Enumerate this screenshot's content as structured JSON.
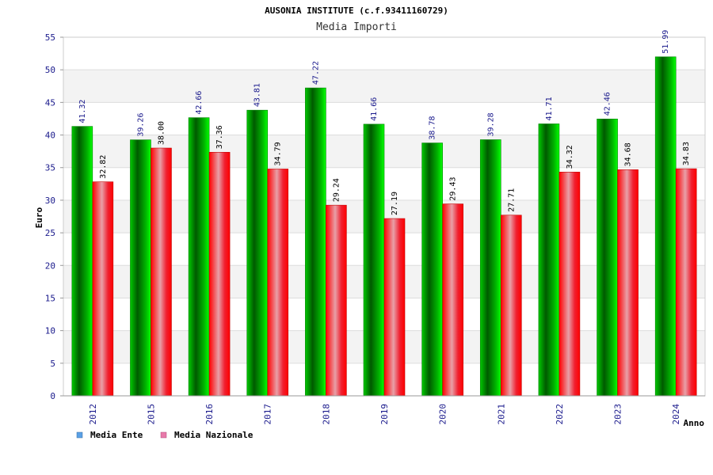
{
  "chart_data": {
    "type": "bar",
    "title": "AUSONIA INSTITUTE (c.f.93411160729)",
    "subtitle": "Media Importi",
    "xlabel": "Anno",
    "ylabel": "Euro",
    "ylim": [
      0,
      55
    ],
    "yticks": [
      0,
      5,
      10,
      15,
      20,
      25,
      30,
      35,
      40,
      45,
      50,
      55
    ],
    "categories": [
      "2012",
      "2015",
      "2016",
      "2017",
      "2018",
      "2019",
      "2020",
      "2021",
      "2022",
      "2023",
      "2024"
    ],
    "series": [
      {
        "name": "Media Ente",
        "color": "#00c000",
        "legend_color": "#5aa0e6",
        "values": [
          41.32,
          39.26,
          42.66,
          43.81,
          47.22,
          41.66,
          38.78,
          39.28,
          41.71,
          42.46,
          51.99
        ],
        "labels": [
          "41.32",
          "39.26",
          "42.66",
          "43.81",
          "47.22",
          "41.66",
          "38.78",
          "39.28",
          "41.71",
          "42.46",
          "51.99"
        ]
      },
      {
        "name": "Media Nazionale",
        "color": "#ff0000",
        "legend_color": "#e87aaa",
        "values": [
          32.82,
          38.0,
          37.36,
          34.79,
          29.24,
          27.19,
          29.43,
          27.71,
          34.32,
          34.68,
          34.83
        ],
        "labels": [
          "32.82",
          "38.00",
          "37.36",
          "34.79",
          "29.24",
          "27.19",
          "29.43",
          "27.71",
          "34.32",
          "34.68",
          "34.83"
        ]
      }
    ],
    "grid": true,
    "legend_position": "bottom-left"
  }
}
